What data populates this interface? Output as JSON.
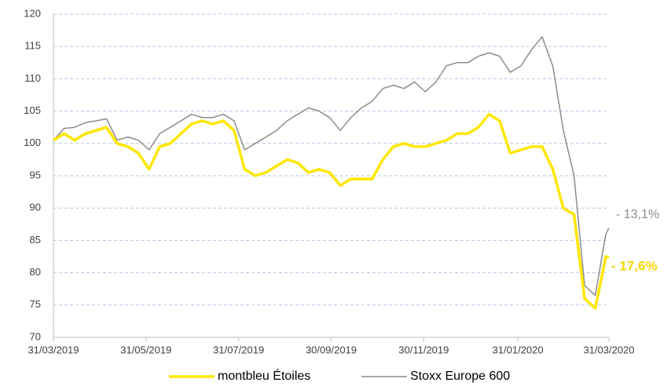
{
  "chart_data": {
    "type": "line",
    "x": [
      "2019-03-31",
      "2019-04-07",
      "2019-04-14",
      "2019-04-21",
      "2019-04-28",
      "2019-05-05",
      "2019-05-12",
      "2019-05-19",
      "2019-05-26",
      "2019-06-02",
      "2019-06-09",
      "2019-06-16",
      "2019-06-23",
      "2019-06-30",
      "2019-07-07",
      "2019-07-14",
      "2019-07-21",
      "2019-07-28",
      "2019-08-04",
      "2019-08-11",
      "2019-08-18",
      "2019-08-25",
      "2019-09-01",
      "2019-09-08",
      "2019-09-15",
      "2019-09-22",
      "2019-09-29",
      "2019-10-06",
      "2019-10-13",
      "2019-10-20",
      "2019-10-27",
      "2019-11-03",
      "2019-11-10",
      "2019-11-17",
      "2019-11-24",
      "2019-12-01",
      "2019-12-08",
      "2019-12-15",
      "2019-12-22",
      "2019-12-29",
      "2020-01-05",
      "2020-01-12",
      "2020-01-19",
      "2020-01-26",
      "2020-02-02",
      "2020-02-09",
      "2020-02-16",
      "2020-02-23",
      "2020-03-01",
      "2020-03-08",
      "2020-03-15",
      "2020-03-22",
      "2020-03-29",
      "2020-03-31"
    ],
    "series": [
      {
        "name": "montbleu Étoiles",
        "color": "#ffe600",
        "values": [
          100.5,
          101.5,
          100.5,
          101.5,
          102,
          102.5,
          100,
          99.5,
          98.5,
          96,
          99.5,
          100,
          101.5,
          103,
          103.5,
          103,
          103.5,
          102,
          96,
          95,
          95.5,
          96.5,
          97.5,
          97,
          95.5,
          96,
          95.5,
          93.5,
          94.5,
          94.5,
          94.5,
          97.5,
          99.5,
          100,
          99.5,
          99.5,
          100,
          100.5,
          101.5,
          101.5,
          102.5,
          104.5,
          103.5,
          98.5,
          99,
          99.5,
          99.5,
          96,
          90,
          89,
          76,
          74.5,
          82.5,
          82.4
        ]
      },
      {
        "name": "Stoxx Europe 600",
        "color": "#8c8c8c",
        "values": [
          100.5,
          102.3,
          102.5,
          103.2,
          103.5,
          103.8,
          100.5,
          101,
          100.5,
          99,
          101.5,
          102.5,
          103.5,
          104.5,
          104,
          104,
          104.5,
          103.5,
          99,
          100,
          101,
          102,
          103.5,
          104.5,
          105.5,
          105,
          104,
          102,
          104,
          105.5,
          106.5,
          108.5,
          109,
          108.5,
          109.5,
          108,
          109.5,
          112,
          112.5,
          112.5,
          113.5,
          114,
          113.5,
          111,
          112,
          114.5,
          116.5,
          112,
          102,
          95,
          78,
          76.5,
          86,
          86.9
        ]
      }
    ],
    "xlim": [
      "2019-03-31",
      "2020-03-31"
    ],
    "xticks": [
      {
        "value": "2019-03-31",
        "label": "31/03/2019"
      },
      {
        "value": "2019-05-31",
        "label": "31/05/2019"
      },
      {
        "value": "2019-07-31",
        "label": "31/07/2019"
      },
      {
        "value": "2019-09-30",
        "label": "30/09/2019"
      },
      {
        "value": "2019-11-30",
        "label": "30/11/2019"
      },
      {
        "value": "2020-01-31",
        "label": "31/01/2020"
      },
      {
        "value": "2020-03-31",
        "label": "31/03/2020"
      }
    ],
    "ylim": [
      70,
      120
    ],
    "yticks": [
      70,
      75,
      80,
      85,
      90,
      95,
      100,
      105,
      110,
      115,
      120
    ],
    "grid": true,
    "annotations": [
      "- 13,1%",
      "- 17,6%"
    ]
  }
}
